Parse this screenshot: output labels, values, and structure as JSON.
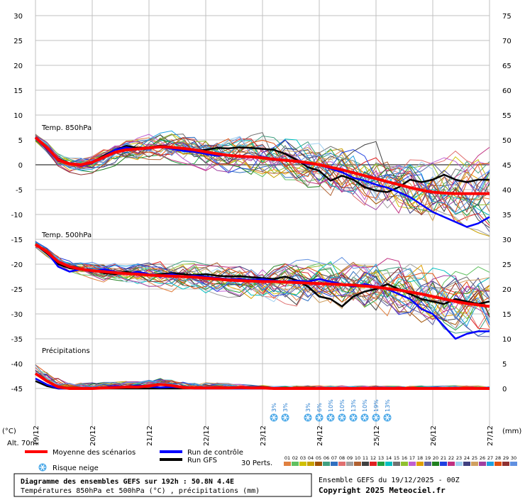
{
  "chart_data": {
    "type": "line",
    "title": "Diagramme des ensembles GEFS sur 192h : 50.8N 4.4E",
    "subtitle": "Températures 850hPa et 500hPa (°C) , précipitations (mm)",
    "left_axis_unit": "(°C)",
    "right_axis_unit": "(mm)",
    "left_ticks": [
      30,
      25,
      20,
      15,
      10,
      5,
      0,
      -5,
      -10,
      -15,
      -20,
      -25,
      -30,
      -35,
      -40,
      -45
    ],
    "right_ticks": [
      75,
      70,
      65,
      60,
      55,
      50,
      45,
      40,
      35,
      30,
      25,
      20,
      15,
      10,
      5,
      0
    ],
    "ylim": [
      -45,
      30
    ],
    "x_dates": [
      "19/12",
      "20/12",
      "21/12",
      "22/12",
      "23/12",
      "24/12",
      "25/12",
      "26/12",
      "27/12"
    ],
    "altitude": "Alt. 70m",
    "panels": {
      "t850": {
        "label": "Temp. 850hPa",
        "mean": [
          5.5,
          3.5,
          1.0,
          0.2,
          0.0,
          0.5,
          1.5,
          2.5,
          3.0,
          3.2,
          3.4,
          3.6,
          3.5,
          3.3,
          3.0,
          2.6,
          2.2,
          1.9,
          1.7,
          1.6,
          1.4,
          1.1,
          0.9,
          0.7,
          0.4,
          0.0,
          -0.5,
          -1.0,
          -1.6,
          -2.2,
          -2.8,
          -3.4,
          -4.0,
          -4.6,
          -5.1,
          -5.5,
          -5.7,
          -5.8,
          -5.8,
          -5.8,
          -5.8
        ],
        "control": [
          5.5,
          3.2,
          0.8,
          0.2,
          -0.2,
          0.3,
          1.6,
          3.0,
          3.5,
          3.1,
          3.4,
          3.6,
          3.2,
          2.8,
          2.6,
          2.2,
          1.8,
          2.0,
          1.7,
          1.5,
          1.6,
          1.2,
          1.0,
          0.6,
          0.2,
          0.0,
          -0.8,
          -1.5,
          -2.6,
          -3.2,
          -4.0,
          -4.6,
          -5.5,
          -6.5,
          -8.0,
          -9.5,
          -10.5,
          -11.5,
          -12.5,
          -11.8,
          -10.5
        ],
        "gfs": [
          5.5,
          3.5,
          1.2,
          0.3,
          -0.1,
          0.5,
          1.8,
          3.0,
          3.8,
          3.4,
          3.5,
          3.8,
          3.6,
          3.2,
          2.8,
          3.0,
          3.4,
          3.3,
          3.5,
          3.4,
          3.2,
          3.0,
          2.2,
          1.0,
          -0.5,
          -1.2,
          -3.2,
          -2.2,
          -3.0,
          -4.5,
          -5.2,
          -5.5,
          -4.5,
          -3.0,
          -3.5,
          -3.0,
          -2.0,
          -3.0,
          -3.5,
          -3.0,
          -3.0
        ]
      },
      "t500": {
        "label": "Temp. 500hPa",
        "mean": [
          -16.0,
          -17.5,
          -19.5,
          -20.5,
          -21.0,
          -21.3,
          -21.5,
          -21.7,
          -21.9,
          -22.0,
          -22.2,
          -22.3,
          -22.4,
          -22.5,
          -22.6,
          -22.8,
          -23.0,
          -23.2,
          -23.3,
          -23.4,
          -23.5,
          -23.5,
          -23.6,
          -23.7,
          -23.8,
          -23.9,
          -24.0,
          -24.1,
          -24.2,
          -24.4,
          -24.6,
          -24.9,
          -25.2,
          -25.6,
          -26.0,
          -26.5,
          -27.0,
          -27.5,
          -27.9,
          -28.2,
          -28.5
        ],
        "control": [
          -16.0,
          -17.5,
          -20.5,
          -21.5,
          -21.0,
          -21.5,
          -21.0,
          -21.5,
          -22.0,
          -21.5,
          -22.0,
          -22.3,
          -22.0,
          -22.5,
          -22.3,
          -22.5,
          -22.8,
          -23.0,
          -23.0,
          -23.2,
          -23.0,
          -23.3,
          -23.5,
          -23.3,
          -23.5,
          -23.0,
          -23.5,
          -24.0,
          -24.5,
          -24.0,
          -24.5,
          -25.0,
          -26.0,
          -27.0,
          -29.0,
          -30.0,
          -32.5,
          -35.0,
          -34.0,
          -33.5,
          -33.5
        ],
        "gfs": [
          -16.0,
          -17.8,
          -20.0,
          -20.8,
          -21.0,
          -21.2,
          -21.8,
          -22.0,
          -21.5,
          -22.0,
          -22.2,
          -22.0,
          -21.8,
          -22.0,
          -22.2,
          -22.0,
          -22.3,
          -22.5,
          -22.4,
          -22.6,
          -22.8,
          -23.0,
          -22.5,
          -23.2,
          -24.5,
          -26.5,
          -27.0,
          -28.5,
          -26.5,
          -25.5,
          -25.0,
          -24.0,
          -25.0,
          -26.0,
          -27.0,
          -27.5,
          -28.0,
          -27.0,
          -27.5,
          -28.0,
          -27.5
        ]
      },
      "precip": {
        "label": "Précipitations",
        "mean_mm": [
          3.0,
          1.5,
          0.3,
          0.0,
          0.0,
          0.0,
          0.1,
          0.2,
          0.3,
          0.3,
          0.5,
          0.8,
          0.6,
          0.2,
          0.1,
          0.1,
          0.1,
          0.1,
          0.2,
          0.1,
          0.1,
          0.0,
          0.0,
          0.0,
          0.0,
          0.0,
          0.0,
          0.0,
          0.0,
          0.0,
          0.0,
          0.0,
          0.0,
          0.0,
          0.0,
          0.0,
          0.0,
          0.0,
          0.0,
          0.0,
          0.0
        ],
        "control_mm": [
          2.0,
          0.8,
          0.0,
          0.0,
          0.0,
          0.0,
          0.2,
          0.5,
          0.3,
          0.6,
          0.4,
          0.2,
          0.3,
          0.2,
          0.0,
          0.0,
          0.0,
          0.0,
          0.0,
          0.0,
          0.0,
          0.0,
          0.0,
          0.0,
          0.0,
          0.0,
          0.0,
          0.0,
          0.0,
          0.0,
          0.0,
          0.0,
          0.0,
          0.0,
          0.0,
          0.0,
          0.0,
          0.0,
          0.0,
          0.0,
          0.0
        ],
        "gfs_mm": [
          1.5,
          0.5,
          0.0,
          0.0,
          0.0,
          0.0,
          0.0,
          0.0,
          0.0,
          0.0,
          0.0,
          0.0,
          0.0,
          0.0,
          0.0,
          0.0,
          0.0,
          0.0,
          0.0,
          0.0,
          0.0,
          0.0,
          0.0,
          0.0,
          0.0,
          0.0,
          0.0,
          0.0,
          0.0,
          0.0,
          0.0,
          0.0,
          0.0,
          0.0,
          0.0,
          0.0,
          0.0,
          0.0,
          0.0,
          0.0,
          0.0
        ]
      }
    },
    "snow_risk": [
      {
        "x_index": 21,
        "pct": "3%"
      },
      {
        "x_index": 22,
        "pct": "3%"
      },
      {
        "x_index": 24,
        "pct": "3%"
      },
      {
        "x_index": 25,
        "pct": "6%"
      },
      {
        "x_index": 26,
        "pct": "10%"
      },
      {
        "x_index": 27,
        "pct": "10%"
      },
      {
        "x_index": 28,
        "pct": "13%"
      },
      {
        "x_index": 29,
        "pct": "10%"
      },
      {
        "x_index": 30,
        "pct": "19%"
      },
      {
        "x_index": 31,
        "pct": "13%"
      }
    ],
    "colors": {
      "mean": "#ff0000",
      "control": "#0000ff",
      "gfs": "#000000",
      "grid": "#c0c0c0",
      "snow": "#4aa8e8"
    },
    "perturbation_colors": [
      "#e08040",
      "#60c060",
      "#d0c000",
      "#c8a000",
      "#a05000",
      "#40a080",
      "#3070c0",
      "#e07070",
      "#a0a0a0",
      "#b06030",
      "#404040",
      "#e02020",
      "#20a040",
      "#00c0c0",
      "#707070",
      "#90c030",
      "#c060d0",
      "#e0a000",
      "#6060a0",
      "#208020",
      "#2040e0",
      "#c03080",
      "#a0d0f0",
      "#404080",
      "#d0a060",
      "#a040a0",
      "#20a0e0",
      "#e05010",
      "#903030",
      "#6090e0"
    ]
  },
  "legend": {
    "mean": "Moyenne des scénarios",
    "control": "Run de contrôle",
    "gfs": "Run GFS",
    "snow": "Risque neige",
    "perts_label": "30 Perts.",
    "perts_numbers": [
      "01",
      "02",
      "03",
      "04",
      "05",
      "06",
      "07",
      "08",
      "09",
      "10",
      "11",
      "12",
      "13",
      "14",
      "15",
      "16",
      "17",
      "18",
      "19",
      "20",
      "21",
      "22",
      "23",
      "24",
      "25",
      "26",
      "27",
      "28",
      "29",
      "30"
    ]
  },
  "footer": {
    "run_info": "Ensemble GEFS du 19/12/2025 - 00Z",
    "copyright": "Copyright 2025 Meteociel.fr"
  }
}
